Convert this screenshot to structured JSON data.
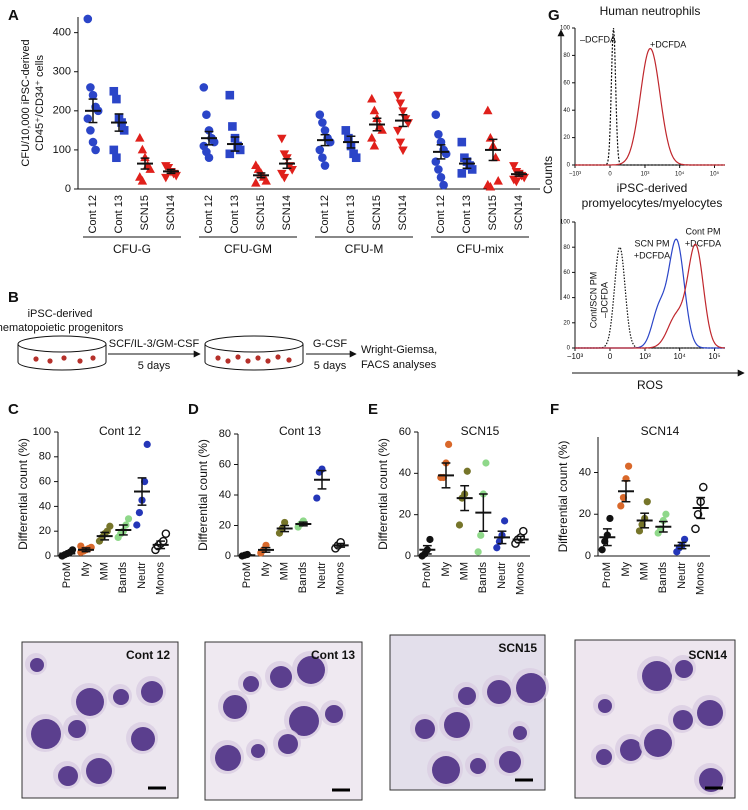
{
  "panel_labels": [
    "A",
    "B",
    "C",
    "D",
    "E",
    "F",
    "G"
  ],
  "chart_data": [
    {
      "type": "dot-groups",
      "ylabel": [
        "CFU/10,000 iPSC-derived",
        "CD45⁺/CD34⁺ cells"
      ],
      "groups": [
        "CFU-G",
        "CFU-GM",
        "CFU-M",
        "CFU-mix"
      ],
      "ylim": [
        0,
        440
      ],
      "yticks": [
        0,
        100,
        200,
        300,
        400
      ],
      "series": [
        {
          "name": "Cont 12",
          "color": "#2b45c8",
          "marker": "circle",
          "points": [
            [
              435,
              260,
              240,
              210,
              200,
              180,
              150,
              120,
              100
            ],
            [
              260,
              190,
              150,
              130,
              120,
              110,
              95,
              80
            ],
            [
              190,
              170,
              150,
              130,
              120,
              100,
              80,
              60
            ],
            [
              190,
              140,
              120,
              100,
              90,
              70,
              50,
              30,
              10
            ]
          ],
          "means": [
            200,
            130,
            125,
            95
          ],
          "errors": [
            30,
            17,
            14,
            18
          ]
        },
        {
          "name": "Cont 13",
          "color": "#2b45c8",
          "marker": "square",
          "points": [
            [
              250,
              230,
              180,
              170,
              150,
              100,
              80
            ],
            [
              240,
              160,
              130,
              110,
              100,
              90
            ],
            [
              150,
              130,
              110,
              90,
              80
            ],
            [
              120,
              80,
              70,
              60,
              50,
              40
            ]
          ],
          "means": [
            170,
            115,
            120,
            65
          ],
          "errors": [
            22,
            18,
            15,
            12
          ]
        },
        {
          "name": "SCN15",
          "color": "#e0201b",
          "marker": "triangle-up",
          "points": [
            [
              130,
              100,
              80,
              60,
              50,
              30,
              20
            ],
            [
              60,
              50,
              40,
              30,
              20,
              15
            ],
            [
              230,
              200,
              180,
              160,
              150,
              130,
              110
            ],
            [
              200,
              130,
              110,
              80,
              20,
              10,
              5
            ]
          ],
          "means": [
            65,
            35,
            165,
            100
          ],
          "errors": [
            14,
            6,
            16,
            27
          ]
        },
        {
          "name": "SCN14",
          "color": "#e0201b",
          "marker": "triangle-down",
          "points": [
            [
              60,
              55,
              45,
              40,
              35,
              30
            ],
            [
              130,
              90,
              80,
              60,
              50,
              40,
              30
            ],
            [
              240,
              220,
              200,
              180,
              170,
              150,
              120,
              100
            ],
            [
              60,
              45,
              40,
              35,
              30,
              25,
              20
            ]
          ],
          "means": [
            45,
            65,
            175,
            38
          ],
          "errors": [
            5,
            12,
            15,
            5
          ]
        }
      ]
    },
    {
      "type": "dot",
      "title": "Cont 12",
      "ylabel": "Differential count (%)",
      "categories": [
        "ProM",
        "My",
        "MM",
        "Bands",
        "Neutr",
        "Monos"
      ],
      "colors": [
        "#111111",
        "#d9682a",
        "#76752a",
        "#8fd88a",
        "#2436b8",
        "#111111"
      ],
      "marker_fill": [
        "solid",
        "solid",
        "solid",
        "solid",
        "solid",
        "none"
      ],
      "points": [
        [
          0,
          1,
          2,
          3,
          5,
          0
        ],
        [
          3,
          4,
          5,
          6,
          7,
          8
        ],
        [
          12,
          15,
          18,
          20,
          24
        ],
        [
          15,
          18,
          20,
          25,
          30
        ],
        [
          25,
          35,
          45,
          60,
          90
        ],
        [
          5,
          8,
          10,
          12,
          18
        ]
      ],
      "means": [
        2,
        5,
        16,
        21,
        52,
        9
      ],
      "errors": [
        1,
        1.5,
        3,
        4,
        11,
        3
      ],
      "ylim": [
        0,
        100
      ],
      "yticks": [
        0,
        20,
        40,
        60,
        80,
        100
      ]
    },
    {
      "type": "dot",
      "title": "Cont 13",
      "ylabel": "Differential count (%)",
      "categories": [
        "ProM",
        "My",
        "MM",
        "Bands",
        "Neutr",
        "Monos"
      ],
      "colors": [
        "#111111",
        "#d9682a",
        "#76752a",
        "#8fd88a",
        "#2436b8",
        "#111111"
      ],
      "marker_fill": [
        "solid",
        "solid",
        "solid",
        "solid",
        "solid",
        "none"
      ],
      "points": [
        [
          0,
          0.5,
          1
        ],
        [
          2,
          4,
          7
        ],
        [
          15,
          18,
          22
        ],
        [
          19,
          21,
          23
        ],
        [
          38,
          55,
          57
        ],
        [
          5,
          7,
          9
        ]
      ],
      "means": [
        0.5,
        4,
        18,
        21,
        50,
        7
      ],
      "errors": [
        0.3,
        1.5,
        2,
        1.2,
        6,
        1.2
      ],
      "ylim": [
        0,
        80
      ],
      "yticks": [
        0,
        20,
        40,
        60,
        80
      ]
    },
    {
      "type": "dot",
      "title": "SCN15",
      "ylabel": "Differential count (%)",
      "categories": [
        "ProM",
        "My",
        "MM",
        "Bands",
        "Neutr",
        "Monos"
      ],
      "colors": [
        "#111111",
        "#d9682a",
        "#76752a",
        "#8fd88a",
        "#2436b8",
        "#111111"
      ],
      "marker_fill": [
        "solid",
        "solid",
        "solid",
        "solid",
        "solid",
        "none"
      ],
      "points": [
        [
          0,
          1,
          3,
          8
        ],
        [
          38,
          38,
          45,
          54
        ],
        [
          15,
          28,
          30,
          41
        ],
        [
          2,
          10,
          30,
          45
        ],
        [
          4,
          7,
          10,
          17
        ],
        [
          6,
          8,
          9,
          12
        ]
      ],
      "means": [
        3,
        39,
        28,
        21,
        9,
        8
      ],
      "errors": [
        2,
        6,
        6,
        9,
        3,
        1.5
      ],
      "ylim": [
        0,
        60
      ],
      "yticks": [
        0,
        20,
        40,
        60
      ]
    },
    {
      "type": "dot",
      "title": "SCN14",
      "ylabel": "Differential count (%)",
      "categories": [
        "ProM",
        "My",
        "MM",
        "Bands",
        "Neutr",
        "Monos"
      ],
      "colors": [
        "#111111",
        "#d9682a",
        "#76752a",
        "#8fd88a",
        "#2436b8",
        "#111111"
      ],
      "marker_fill": [
        "solid",
        "solid",
        "solid",
        "solid",
        "solid",
        "none"
      ],
      "points": [
        [
          3,
          7,
          10,
          18
        ],
        [
          24,
          28,
          37,
          43
        ],
        [
          12,
          15,
          18,
          26
        ],
        [
          11,
          13,
          17,
          20
        ],
        [
          2,
          4,
          5,
          8
        ],
        [
          13,
          20,
          26,
          33
        ]
      ],
      "means": [
        9,
        31,
        17,
        14,
        5,
        23
      ],
      "errors": [
        4,
        5,
        3.5,
        2.5,
        1.5,
        5
      ],
      "ylim": [
        0,
        57
      ],
      "yticks": [
        0,
        20,
        40
      ]
    }
  ],
  "diagram": {
    "source": [
      "iPSC-derived",
      "hematopoietic progenitors"
    ],
    "step1": [
      "SCF/IL-3/GM-CSF",
      "5 days"
    ],
    "step2": [
      "G-CSF",
      "5 days"
    ],
    "output": [
      "Wright-Giemsa,",
      "FACS analyses"
    ]
  },
  "flow": {
    "title_top": "Human neutrophils",
    "title_bottom": [
      "iPSC-derived",
      "promyelocytes/myelocytes"
    ],
    "ylabel": "Counts",
    "xlabel": "ROS",
    "ylim": [
      0,
      100
    ],
    "yticks": [
      0,
      20,
      40,
      60,
      80,
      100
    ],
    "xlim": [
      -1000,
      200000
    ],
    "xticks": [
      {
        "value": -1000,
        "label": "−10³"
      },
      0,
      {
        "value": 1000,
        "label": "10³"
      },
      {
        "value": 10000,
        "label": "10⁴"
      },
      {
        "value": 100000,
        "label": "10⁵"
      }
    ],
    "top_labels": [
      "–DCFDA",
      "+DCFDA"
    ],
    "bottom_labels": [
      [
        "SCN PM",
        "+DCFDA"
      ],
      [
        "Cont PM",
        "+DCFDA"
      ],
      [
        "Cont/SCN PM",
        "–DCFDA"
      ]
    ]
  },
  "micrographs": [
    "Cont 12",
    "Cont 13",
    "SCN15",
    "SCN14"
  ]
}
